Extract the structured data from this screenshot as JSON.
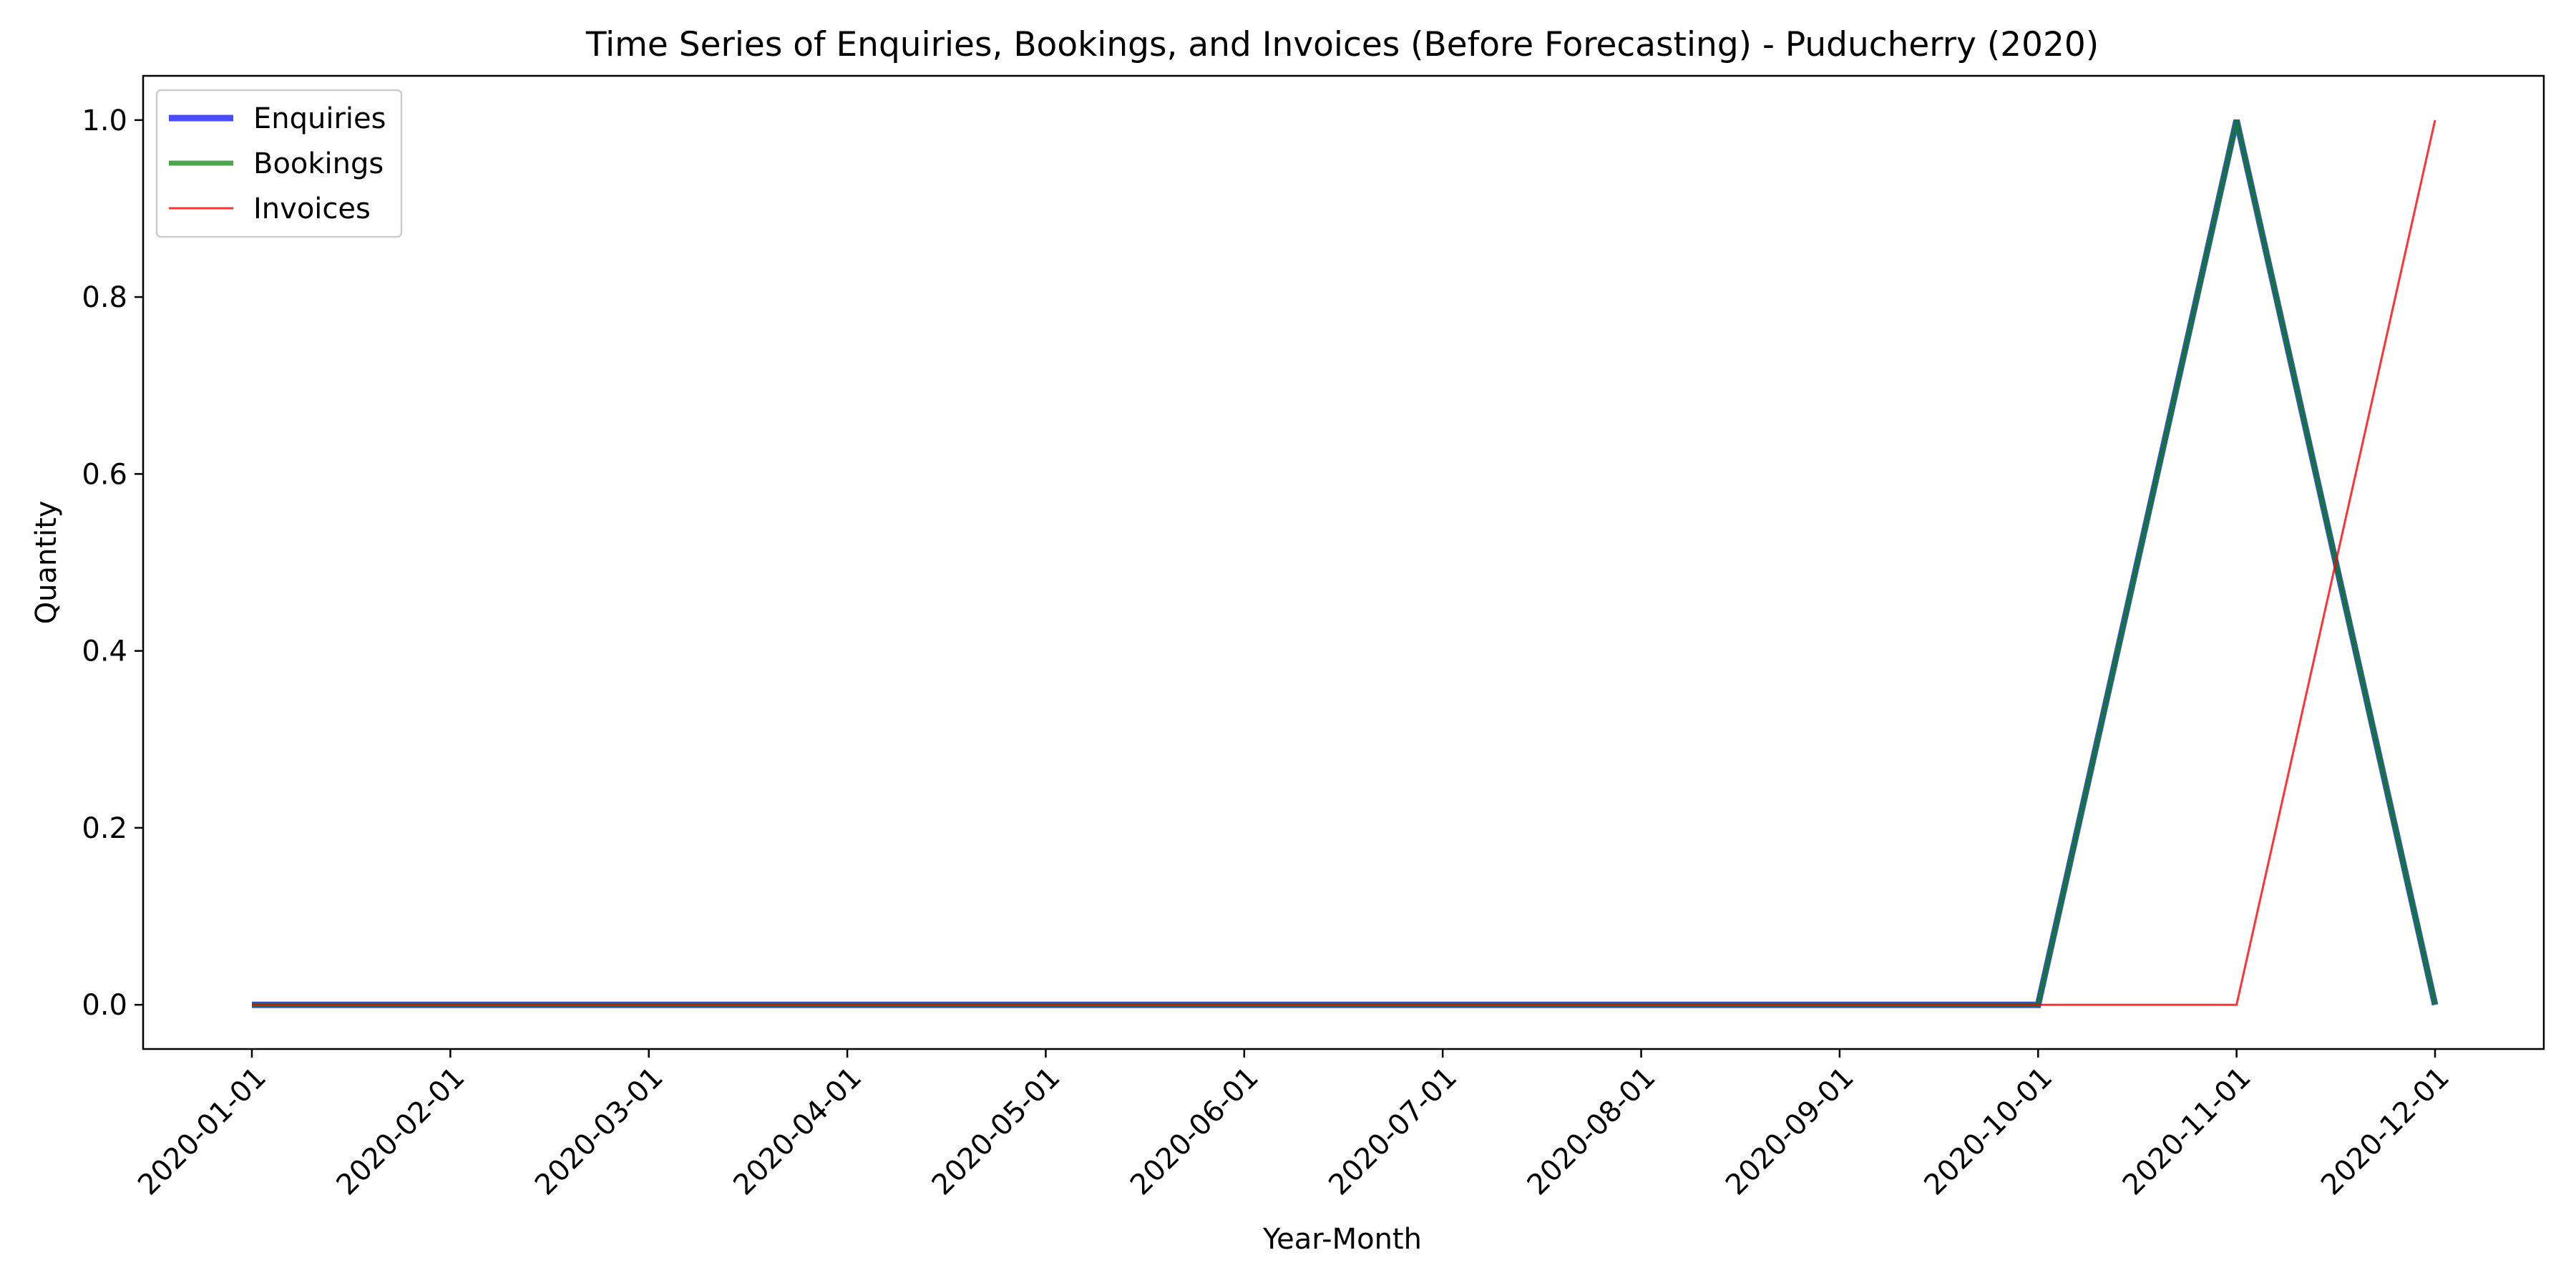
{
  "chart_data": {
    "type": "line",
    "title": "Time Series of Enquiries, Bookings, and Invoices (Before Forecasting) - Puducherry (2020)",
    "xlabel": "Year-Month",
    "ylabel": "Quantity",
    "categories": [
      "2020-01-01",
      "2020-02-01",
      "2020-03-01",
      "2020-04-01",
      "2020-05-01",
      "2020-06-01",
      "2020-07-01",
      "2020-08-01",
      "2020-09-01",
      "2020-10-01",
      "2020-11-01",
      "2020-12-01"
    ],
    "ylim": [
      -0.05,
      1.05
    ],
    "yticks": [
      "0.0",
      "0.2",
      "0.4",
      "0.6",
      "0.8",
      "1.0"
    ],
    "grid": false,
    "legend_position": "upper-left",
    "series": [
      {
        "name": "Enquiries",
        "color": "#0000ff",
        "opacity": 0.7,
        "values": [
          0,
          0,
          0,
          0,
          0,
          0,
          0,
          0,
          0,
          0,
          1,
          0
        ]
      },
      {
        "name": "Bookings",
        "color": "#008000",
        "opacity": 0.7,
        "values": [
          0,
          0,
          0,
          0,
          0,
          0,
          0,
          0,
          0,
          0,
          1,
          0
        ]
      },
      {
        "name": "Invoices",
        "color": "#ff0000",
        "opacity": 0.8,
        "values": [
          0,
          0,
          0,
          0,
          0,
          0,
          0,
          0,
          0,
          0,
          0,
          1
        ]
      }
    ]
  }
}
